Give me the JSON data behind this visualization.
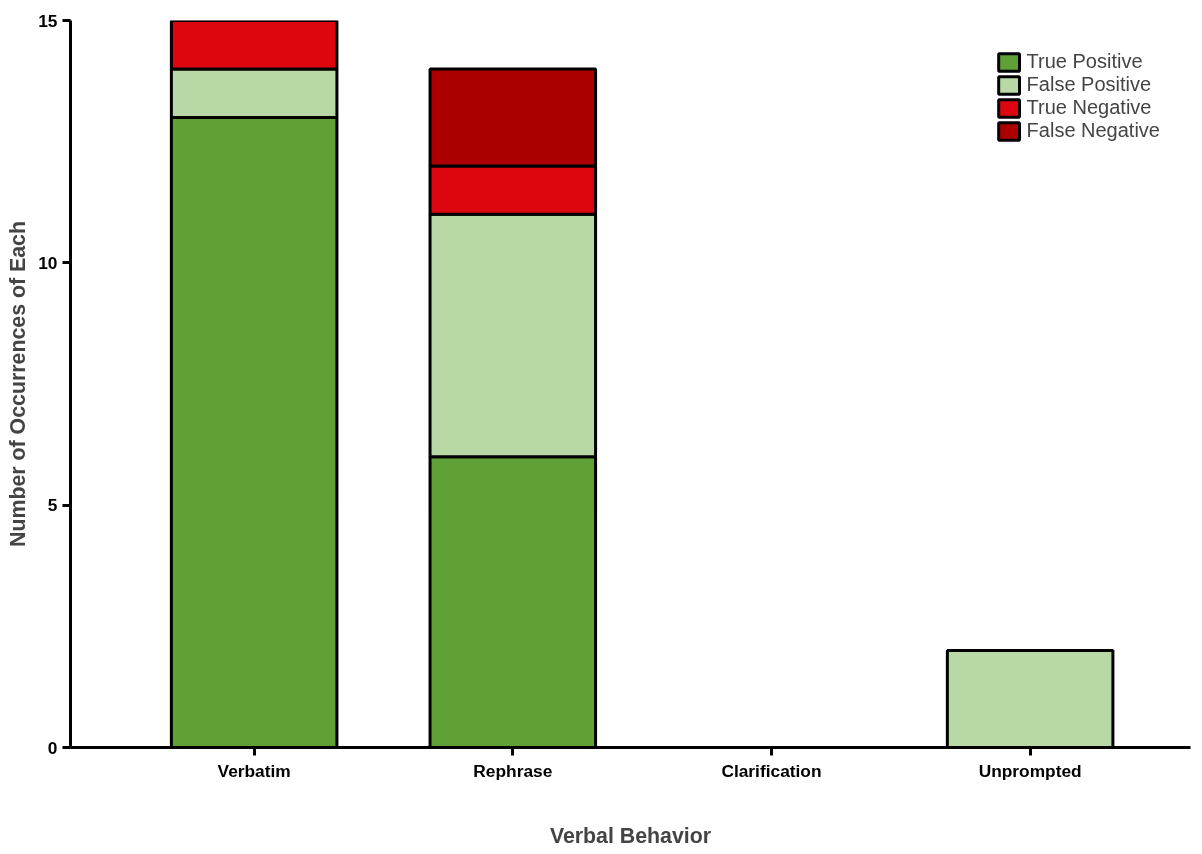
{
  "chart_data": {
    "type": "bar",
    "stacked": true,
    "xlabel": "Verbal Behavior",
    "ylabel": "Number of Occurrences of Each",
    "categories": [
      "Verbatim",
      "Rephrase",
      "Clarification",
      "Unprompted"
    ],
    "series": [
      {
        "name": "True Positive",
        "color": "#5fa037",
        "values": [
          13,
          6,
          0,
          0
        ]
      },
      {
        "name": "False Positive",
        "color": "#b8d9a6",
        "values": [
          1,
          5,
          0,
          2
        ]
      },
      {
        "name": "True Negative",
        "color": "#dc0510",
        "values": [
          1,
          1,
          0,
          0
        ]
      },
      {
        "name": "False Negative",
        "color": "#ac0000",
        "values": [
          0,
          2,
          0,
          0
        ]
      }
    ],
    "ylim": [
      0,
      15
    ],
    "yticks": [
      0,
      5,
      10,
      15
    ],
    "grid": false,
    "legend": "top right"
  }
}
